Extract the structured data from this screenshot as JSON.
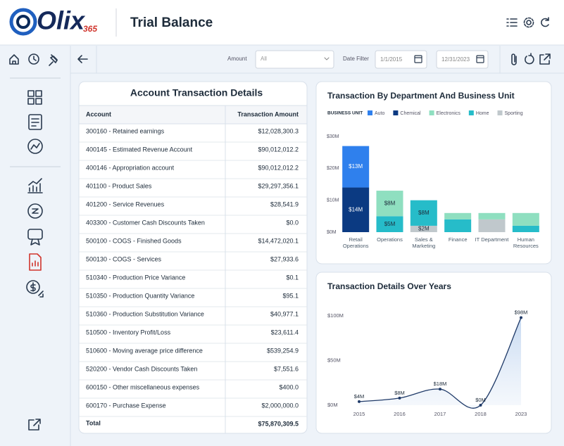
{
  "header": {
    "logo": "Olix",
    "logo_suffix": "365",
    "title": "Trial Balance"
  },
  "toolbar": {
    "amount_label": "Amount",
    "amount_value": "All",
    "date_filter_label": "Date Filter",
    "date_from": "1/1/2015",
    "date_to": "12/31/2023"
  },
  "table": {
    "title": "Account Transaction Details",
    "columns": [
      "Account",
      "Transaction Amount"
    ],
    "rows": [
      [
        "300160 - Retained earnings",
        "$12,028,300.3"
      ],
      [
        "400145 - Estimated Revenue Account",
        "$90,012,012.2"
      ],
      [
        "400146 - Appropriation account",
        "$90,012,012.2"
      ],
      [
        "401100 - Product Sales",
        "$29,297,356.1"
      ],
      [
        "401200 - Service Revenues",
        "$28,541.9"
      ],
      [
        "403300 - Customer Cash Discounts Taken",
        "$0.0"
      ],
      [
        "500100 - COGS - Finished Goods",
        "$14,472,020.1"
      ],
      [
        "500130 - COGS - Services",
        "$27,933.6"
      ],
      [
        "510340 - Production Price Variance",
        "$0.1"
      ],
      [
        "510350 - Production Quantity Variance",
        "$95.1"
      ],
      [
        "510360 - Production Substitution Variance",
        "$40,977.1"
      ],
      [
        "510500 - Inventory Profit/Loss",
        "$23,611.4"
      ],
      [
        "510600 - Moving average price difference",
        "$539,254.9"
      ],
      [
        "520200 - Vendor Cash Discounts Taken",
        "$7,551.6"
      ],
      [
        "600150 - Other miscellaneous expenses",
        "$400.0"
      ],
      [
        "600170 - Purchase Expense",
        "$2,000,000.0"
      ]
    ],
    "total": [
      "Total",
      "$75,870,309.5"
    ]
  },
  "chart_data": [
    {
      "type": "stacked_bar",
      "title": "Transaction By Department And Business Unit",
      "legend_title": "BUSINESS UNIT",
      "categories": [
        "Retail Operations",
        "Operations",
        "Sales & Marketing",
        "Finance",
        "IT Department",
        "Human Resources"
      ],
      "series": [
        {
          "name": "Auto",
          "color": "#2f80ed",
          "values": [
            13,
            null,
            null,
            null,
            null,
            null
          ],
          "value_labels": [
            "$13M",
            null,
            null,
            null,
            null,
            null
          ]
        },
        {
          "name": "Chemical",
          "color": "#0b3a82",
          "values": [
            14,
            null,
            null,
            null,
            null,
            null
          ],
          "value_labels": [
            "$14M",
            null,
            null,
            null,
            null,
            null
          ]
        },
        {
          "name": "Electronics",
          "color": "#8fdfc0",
          "values": [
            null,
            8,
            null,
            2,
            2,
            4
          ],
          "value_labels": [
            null,
            "$8M",
            null,
            null,
            null,
            null
          ]
        },
        {
          "name": "Home",
          "color": "#26bcc9",
          "values": [
            null,
            5,
            8,
            4,
            null,
            2
          ],
          "value_labels": [
            null,
            "$5M",
            "$8M",
            null,
            null,
            null
          ]
        },
        {
          "name": "Sporting",
          "color": "#c0c8cc",
          "values": [
            null,
            null,
            2,
            null,
            4,
            null
          ],
          "value_labels": [
            null,
            null,
            "$2M",
            null,
            null,
            null
          ]
        }
      ],
      "ylim": [
        0,
        30
      ],
      "yticks": [
        {
          "value": 0,
          "label": "$0M"
        },
        {
          "value": 10,
          "label": "$10M"
        },
        {
          "value": 20,
          "label": "$20M"
        },
        {
          "value": 30,
          "label": "$30M"
        }
      ],
      "grid": false
    },
    {
      "type": "area",
      "title": "Transaction Details Over Years",
      "categories": [
        "2015",
        "2016",
        "2017",
        "2018",
        "2023"
      ],
      "values": [
        4,
        8,
        18,
        0,
        98
      ],
      "value_labels": [
        "$4M",
        "$8M",
        "$18M",
        "$0M",
        "$98M"
      ],
      "color": "#1f3a68",
      "ylim": [
        0,
        100
      ],
      "yticks": [
        {
          "value": 0,
          "label": "$0M"
        },
        {
          "value": 50,
          "label": "$50M"
        },
        {
          "value": 100,
          "label": "$100M"
        }
      ],
      "grid": false
    }
  ]
}
